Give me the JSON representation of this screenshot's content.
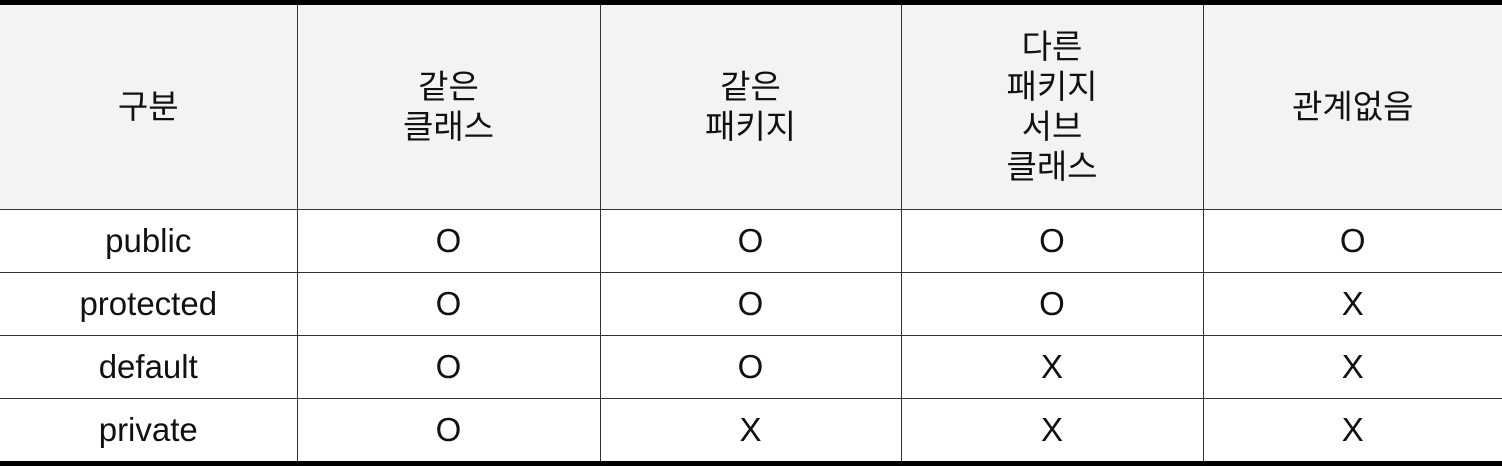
{
  "table": {
    "headers": [
      {
        "lines": [
          "구분"
        ]
      },
      {
        "lines": [
          "같은",
          "클래스"
        ]
      },
      {
        "lines": [
          "같은",
          "패키지"
        ]
      },
      {
        "lines": [
          "다른",
          "패키지",
          "서브",
          "클래스"
        ]
      },
      {
        "lines": [
          "관계없음"
        ]
      }
    ],
    "rows": [
      {
        "cells": [
          "public",
          "O",
          "O",
          "O",
          "O"
        ]
      },
      {
        "cells": [
          "protected",
          "O",
          "O",
          "O",
          "X"
        ]
      },
      {
        "cells": [
          "default",
          "O",
          "O",
          "X",
          "X"
        ]
      },
      {
        "cells": [
          "private",
          "O",
          "X",
          "X",
          "X"
        ]
      }
    ]
  }
}
